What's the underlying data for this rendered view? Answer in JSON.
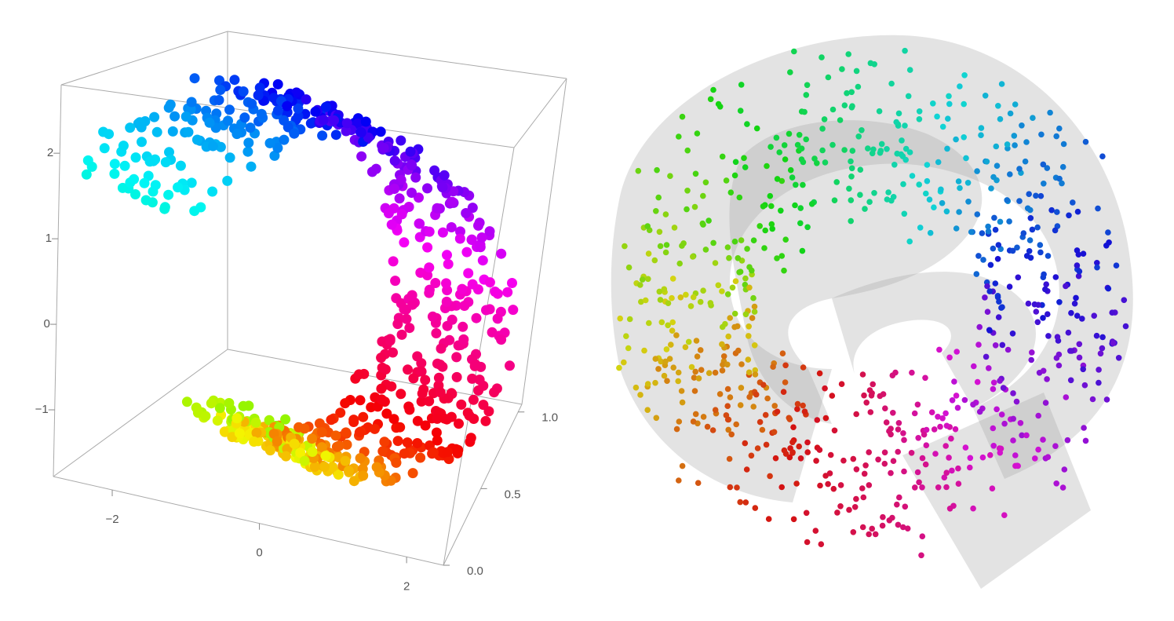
{
  "chart_data": {
    "type": "scatter3d",
    "xlim": [
      -2.8,
      2.5
    ],
    "xticks": [
      {
        "value": -2,
        "label": "−2"
      },
      0,
      2
    ],
    "ylim": [
      0,
      1.05
    ],
    "yticks": [
      {
        "value": 0,
        "label": "0.0"
      },
      0.5,
      {
        "value": 1,
        "label": "1.0"
      }
    ],
    "zlim": [
      -1.78,
      2.8
    ],
    "zticks": [
      {
        "value": -1,
        "label": "−1"
      },
      0,
      1,
      2
    ]
  }
}
